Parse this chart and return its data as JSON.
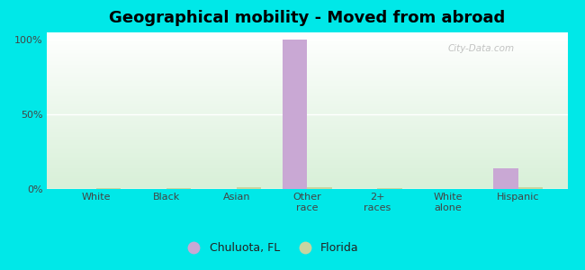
{
  "title": "Geographical mobility - Moved from abroad",
  "categories": [
    "White",
    "Black",
    "Asian",
    "Other\nrace",
    "2+\nraces",
    "White\nalone",
    "Hispanic"
  ],
  "chuluota_values": [
    0.0,
    0.0,
    0.0,
    100.0,
    0.0,
    0.0,
    14.0
  ],
  "florida_values": [
    0.5,
    0.5,
    1.5,
    1.5,
    0.5,
    0.3,
    1.0
  ],
  "chuluota_color": "#c9a8d4",
  "florida_color": "#c8d4a0",
  "background_color": "#00e8e8",
  "plot_bg_top": "#ffffff",
  "plot_bg_bottom": "#d8f0d8",
  "ylim": [
    0,
    105
  ],
  "yticks": [
    0,
    50,
    100
  ],
  "ytick_labels": [
    "0%",
    "50%",
    "100%"
  ],
  "bar_width": 0.35,
  "legend_labels": [
    "Chuluota, FL",
    "Florida"
  ],
  "title_fontsize": 13,
  "watermark": "City-Data.com"
}
